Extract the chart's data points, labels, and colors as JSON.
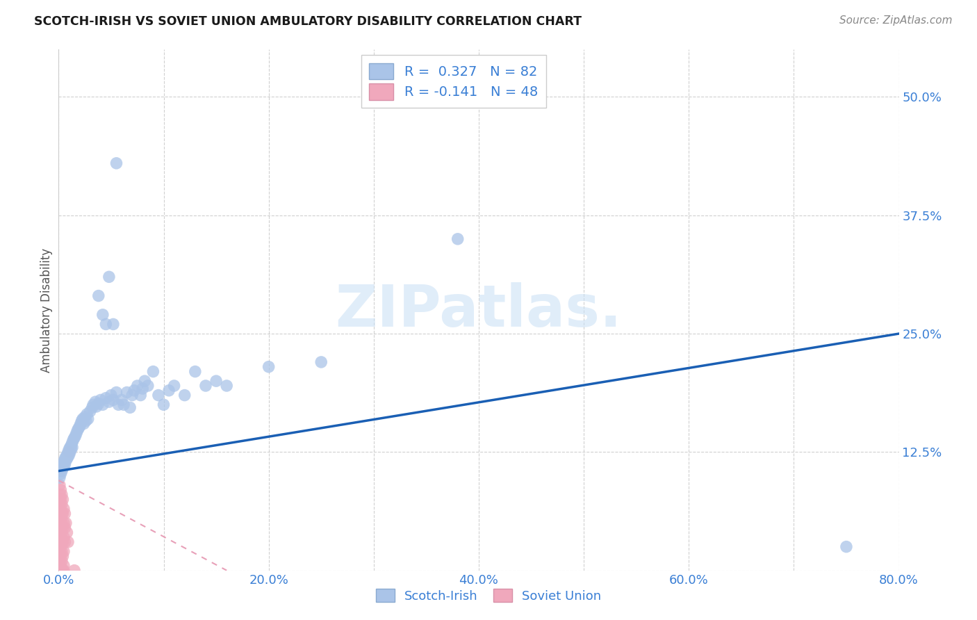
{
  "title": "SCOTCH-IRISH VS SOVIET UNION AMBULATORY DISABILITY CORRELATION CHART",
  "source": "Source: ZipAtlas.com",
  "ylabel": "Ambulatory Disability",
  "background_color": "#ffffff",
  "grid_color": "#d0d0d0",
  "scotch_irish_color": "#aac4e8",
  "soviet_union_color": "#f0a8bc",
  "trend_scotch_color": "#1a5fb4",
  "trend_soviet_color": "#e8a0b8",
  "scotch_irish_points": [
    [
      0.001,
      0.105
    ],
    [
      0.001,
      0.098
    ],
    [
      0.002,
      0.108
    ],
    [
      0.002,
      0.102
    ],
    [
      0.003,
      0.11
    ],
    [
      0.003,
      0.105
    ],
    [
      0.004,
      0.112
    ],
    [
      0.004,
      0.108
    ],
    [
      0.005,
      0.115
    ],
    [
      0.005,
      0.11
    ],
    [
      0.006,
      0.118
    ],
    [
      0.006,
      0.112
    ],
    [
      0.007,
      0.12
    ],
    [
      0.007,
      0.116
    ],
    [
      0.008,
      0.122
    ],
    [
      0.008,
      0.118
    ],
    [
      0.009,
      0.125
    ],
    [
      0.009,
      0.12
    ],
    [
      0.01,
      0.128
    ],
    [
      0.01,
      0.122
    ],
    [
      0.011,
      0.13
    ],
    [
      0.011,
      0.125
    ],
    [
      0.012,
      0.132
    ],
    [
      0.012,
      0.128
    ],
    [
      0.013,
      0.135
    ],
    [
      0.013,
      0.13
    ],
    [
      0.014,
      0.138
    ],
    [
      0.015,
      0.14
    ],
    [
      0.016,
      0.142
    ],
    [
      0.017,
      0.145
    ],
    [
      0.018,
      0.148
    ],
    [
      0.019,
      0.15
    ],
    [
      0.02,
      0.152
    ],
    [
      0.021,
      0.155
    ],
    [
      0.022,
      0.158
    ],
    [
      0.023,
      0.16
    ],
    [
      0.024,
      0.155
    ],
    [
      0.025,
      0.162
    ],
    [
      0.026,
      0.158
    ],
    [
      0.027,
      0.165
    ],
    [
      0.028,
      0.16
    ],
    [
      0.03,
      0.168
    ],
    [
      0.032,
      0.172
    ],
    [
      0.033,
      0.175
    ],
    [
      0.035,
      0.178
    ],
    [
      0.036,
      0.173
    ],
    [
      0.038,
      0.176
    ],
    [
      0.04,
      0.18
    ],
    [
      0.042,
      0.175
    ],
    [
      0.045,
      0.182
    ],
    [
      0.048,
      0.178
    ],
    [
      0.05,
      0.185
    ],
    [
      0.052,
      0.18
    ],
    [
      0.055,
      0.188
    ],
    [
      0.057,
      0.175
    ],
    [
      0.06,
      0.18
    ],
    [
      0.062,
      0.175
    ],
    [
      0.065,
      0.188
    ],
    [
      0.068,
      0.172
    ],
    [
      0.07,
      0.185
    ],
    [
      0.072,
      0.19
    ],
    [
      0.075,
      0.195
    ],
    [
      0.078,
      0.185
    ],
    [
      0.08,
      0.192
    ],
    [
      0.082,
      0.2
    ],
    [
      0.085,
      0.195
    ],
    [
      0.09,
      0.21
    ],
    [
      0.095,
      0.185
    ],
    [
      0.1,
      0.175
    ],
    [
      0.105,
      0.19
    ],
    [
      0.11,
      0.195
    ],
    [
      0.12,
      0.185
    ],
    [
      0.13,
      0.21
    ],
    [
      0.14,
      0.195
    ],
    [
      0.15,
      0.2
    ],
    [
      0.16,
      0.195
    ],
    [
      0.2,
      0.215
    ],
    [
      0.25,
      0.22
    ],
    [
      0.038,
      0.29
    ],
    [
      0.042,
      0.27
    ],
    [
      0.045,
      0.26
    ],
    [
      0.048,
      0.31
    ],
    [
      0.052,
      0.26
    ],
    [
      0.055,
      0.43
    ],
    [
      0.38,
      0.35
    ],
    [
      0.75,
      0.025
    ]
  ],
  "soviet_union_points": [
    [
      0.001,
      0.09
    ],
    [
      0.001,
      0.08
    ],
    [
      0.001,
      0.07
    ],
    [
      0.001,
      0.06
    ],
    [
      0.001,
      0.05
    ],
    [
      0.001,
      0.04
    ],
    [
      0.001,
      0.03
    ],
    [
      0.001,
      0.02
    ],
    [
      0.001,
      0.01
    ],
    [
      0.001,
      0.0
    ],
    [
      0.002,
      0.085
    ],
    [
      0.002,
      0.075
    ],
    [
      0.002,
      0.065
    ],
    [
      0.002,
      0.055
    ],
    [
      0.002,
      0.045
    ],
    [
      0.002,
      0.035
    ],
    [
      0.002,
      0.025
    ],
    [
      0.002,
      0.015
    ],
    [
      0.002,
      0.005
    ],
    [
      0.002,
      0.0
    ],
    [
      0.003,
      0.08
    ],
    [
      0.003,
      0.07
    ],
    [
      0.003,
      0.06
    ],
    [
      0.003,
      0.05
    ],
    [
      0.003,
      0.04
    ],
    [
      0.003,
      0.03
    ],
    [
      0.003,
      0.02
    ],
    [
      0.003,
      0.01
    ],
    [
      0.003,
      0.0
    ],
    [
      0.004,
      0.075
    ],
    [
      0.004,
      0.06
    ],
    [
      0.004,
      0.045
    ],
    [
      0.004,
      0.03
    ],
    [
      0.004,
      0.015
    ],
    [
      0.004,
      0.0
    ],
    [
      0.005,
      0.065
    ],
    [
      0.005,
      0.05
    ],
    [
      0.005,
      0.035
    ],
    [
      0.005,
      0.02
    ],
    [
      0.005,
      0.005
    ],
    [
      0.005,
      0.0
    ],
    [
      0.006,
      0.06
    ],
    [
      0.006,
      0.045
    ],
    [
      0.006,
      0.03
    ],
    [
      0.007,
      0.05
    ],
    [
      0.008,
      0.04
    ],
    [
      0.009,
      0.03
    ],
    [
      0.01,
      0.125
    ],
    [
      0.015,
      0.0
    ]
  ],
  "xmin": 0.0,
  "xmax": 0.8,
  "ymin": 0.0,
  "ymax": 0.55,
  "xticks": [
    0.0,
    0.1,
    0.2,
    0.3,
    0.4,
    0.5,
    0.6,
    0.7,
    0.8
  ],
  "xtick_labels": [
    "0.0%",
    "",
    "20.0%",
    "",
    "40.0%",
    "",
    "60.0%",
    "",
    "80.0%"
  ],
  "yticks": [
    0.0,
    0.125,
    0.25,
    0.375,
    0.5
  ],
  "ytick_labels": [
    "",
    "12.5%",
    "25.0%",
    "37.5%",
    "50.0%"
  ],
  "trend_si_x0": 0.0,
  "trend_si_x1": 0.8,
  "trend_si_y0": 0.105,
  "trend_si_y1": 0.25,
  "trend_sv_x0": 0.0,
  "trend_sv_x1": 0.16,
  "trend_sv_y0": 0.095,
  "trend_sv_y1": 0.0
}
